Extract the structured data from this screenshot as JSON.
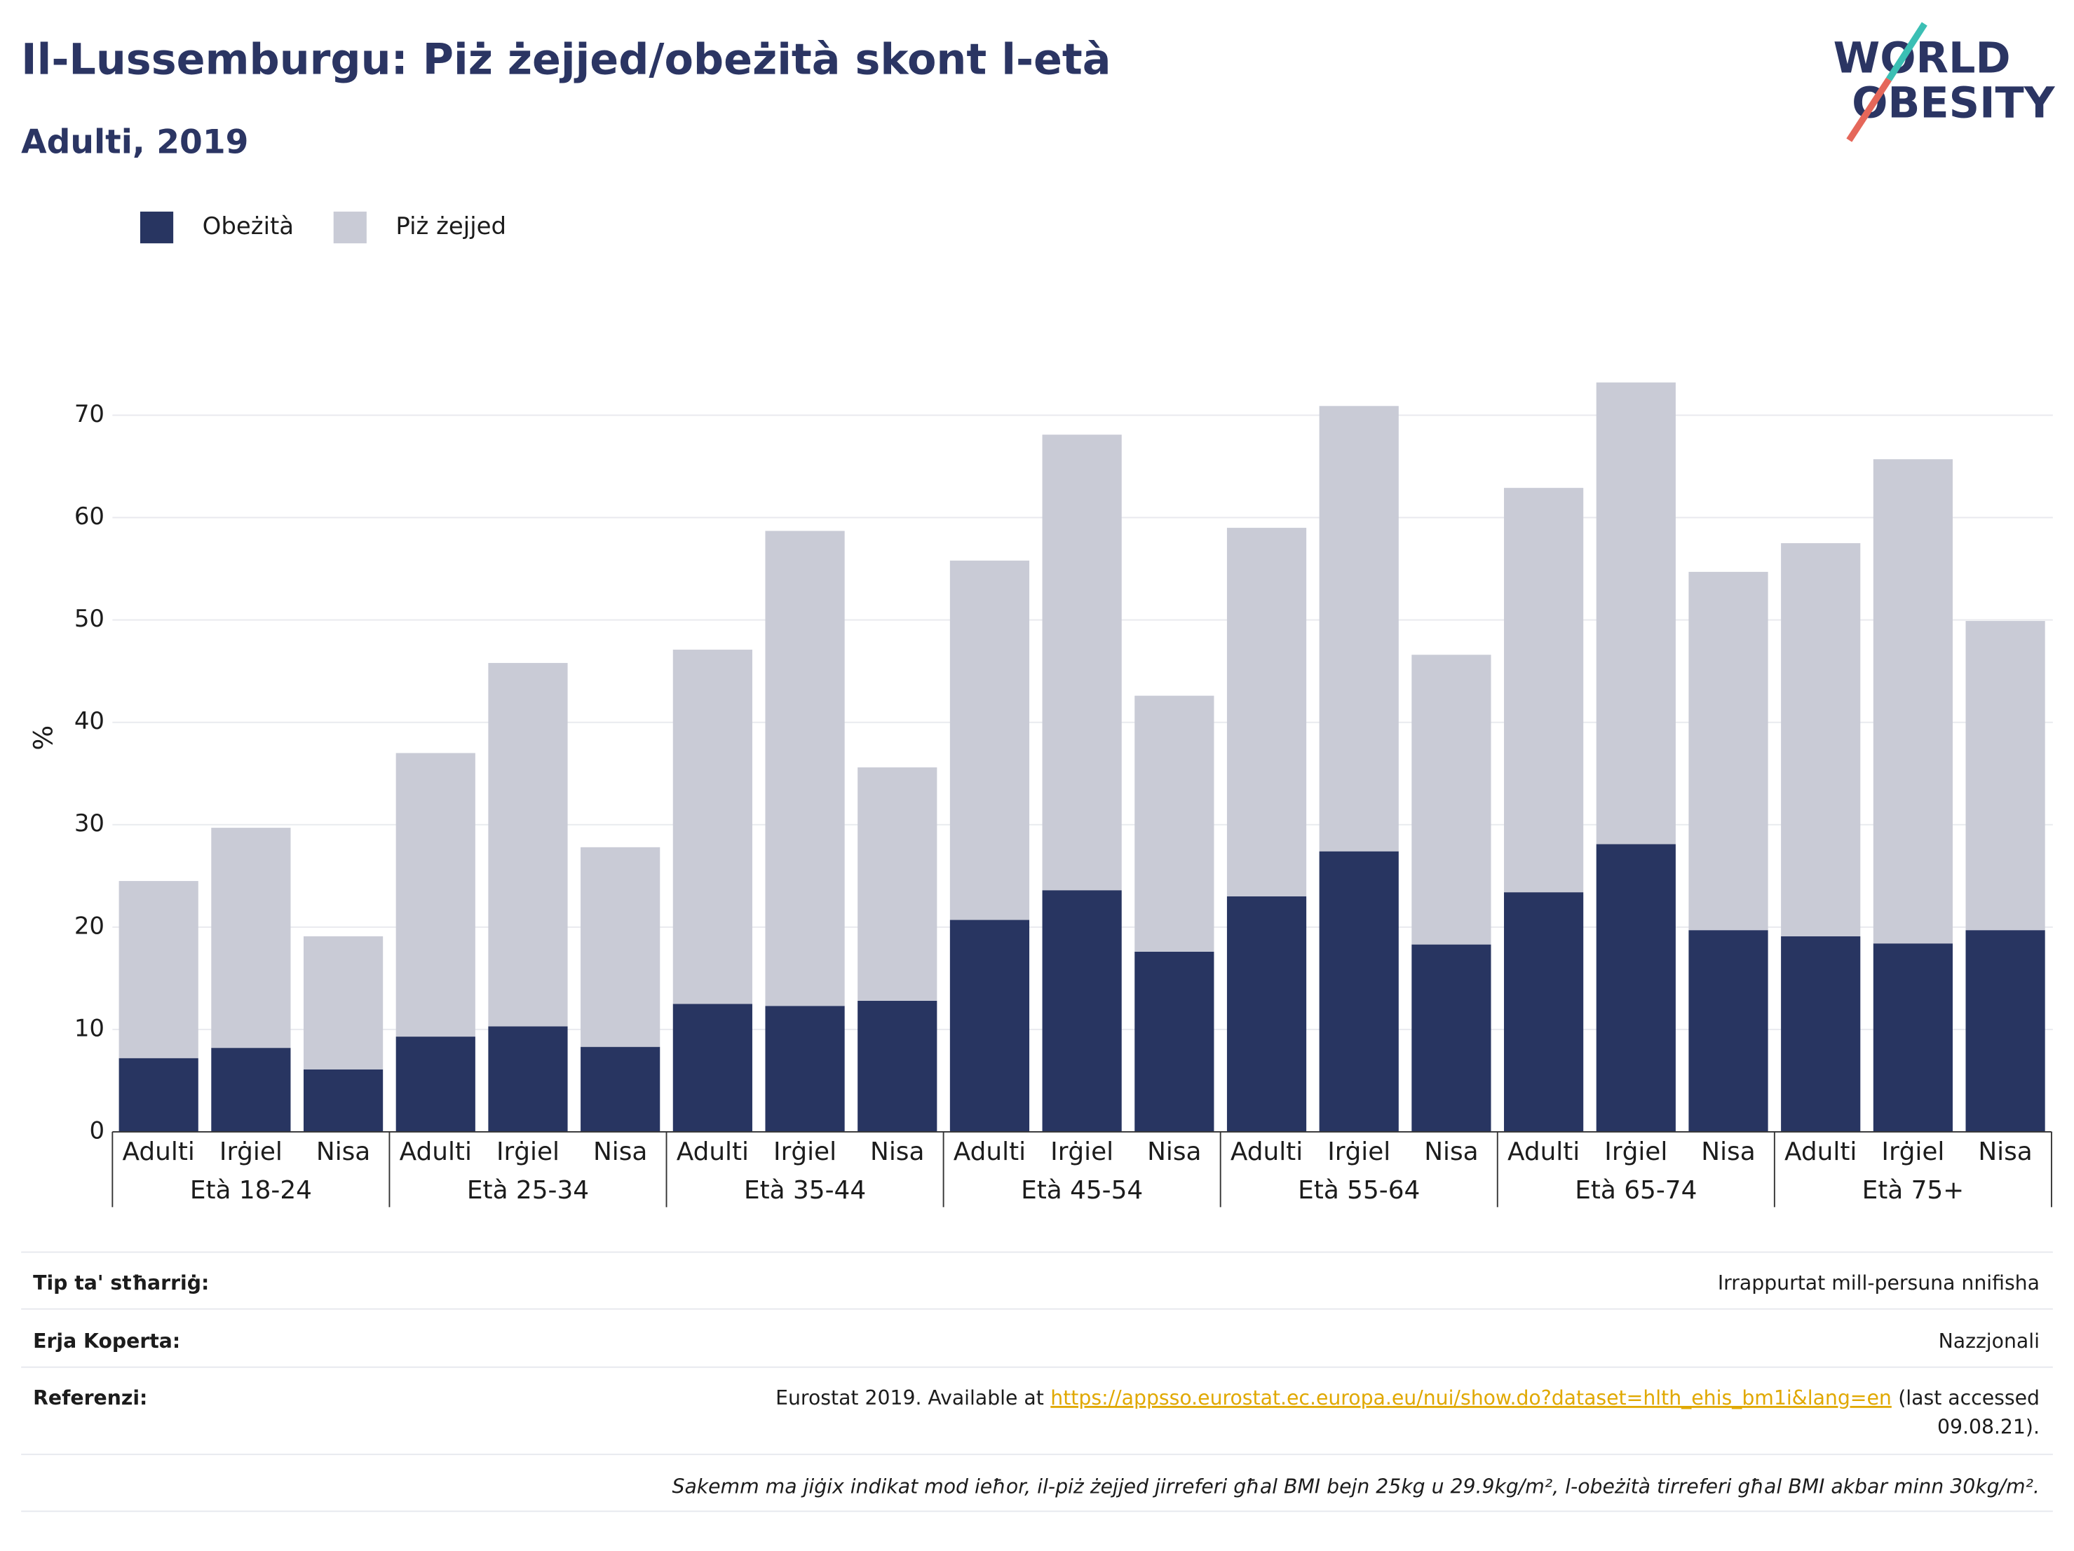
{
  "chart_data": {
    "type": "stacked_bar",
    "title": "Il-Lussemburgu: Piż żejjed/obeżità skont l-età",
    "subtitle": "Adulti, 2019",
    "y_label": "%",
    "categories": [
      "Adulti",
      "Irġiel",
      "Nisa",
      "Adulti",
      "Irġiel",
      "Nisa",
      "Adulti",
      "Irġiel",
      "Nisa",
      "Adulti",
      "Irġiel",
      "Nisa",
      "Adulti",
      "Irġiel",
      "Nisa",
      "Adulti",
      "Irġiel",
      "Nisa",
      "Adulti",
      "Irġiel",
      "Nisa"
    ],
    "groups": [
      "Età 18-24",
      "Età 25-34",
      "Età 35-44",
      "Età 45-54",
      "Età 55-64",
      "Età 65-74",
      "Età 75+"
    ],
    "series": [
      {
        "name": "Obeżità",
        "color": "#283561",
        "values": [
          7.2,
          8.2,
          6.1,
          9.3,
          10.3,
          8.3,
          12.5,
          12.3,
          12.8,
          20.7,
          23.6,
          17.6,
          23.0,
          27.4,
          18.3,
          23.4,
          28.1,
          19.7,
          19.1,
          18.4,
          19.7
        ]
      },
      {
        "name": "Piż żejjed",
        "color": "#c9cbd6",
        "values": [
          17.3,
          21.5,
          13.0,
          27.7,
          35.5,
          19.5,
          34.6,
          46.4,
          22.8,
          35.1,
          44.5,
          25.0,
          36.0,
          43.5,
          28.3,
          39.5,
          45.1,
          35.0,
          38.4,
          47.3,
          30.2
        ]
      }
    ],
    "ylim": [
      0,
      75
    ],
    "yticks": [
      0,
      10,
      20,
      30,
      40,
      50,
      60,
      70
    ],
    "grid": true,
    "legend": "top-left"
  },
  "logo": {
    "line1": "WORLD",
    "line2": "OBESITY"
  },
  "footer": {
    "rows": [
      {
        "label": "Tip ta' stħarriġ:",
        "value": "Irrappurtat mill-persuna nnifisha"
      },
      {
        "label": "Erja Koperta:",
        "value": "Nazzjonali"
      }
    ],
    "reference": {
      "label": "Referenzi:",
      "prefix": "Eurostat 2019. Available at",
      "link": "https://appsso.eurostat.ec.europa.eu/nui/show.do?dataset=hlth_ehis_bm1i&lang=en",
      "suffix": [
        "(last accessed",
        "09.08.21)."
      ]
    },
    "note": "Sakemm ma jiġix indikat mod ieħor, il-piż żejjed jirreferi għal BMI bejn 25kg u 29.9kg/m², l-obeżità tirreferi għal BMI akbar minn 30kg/m²."
  }
}
